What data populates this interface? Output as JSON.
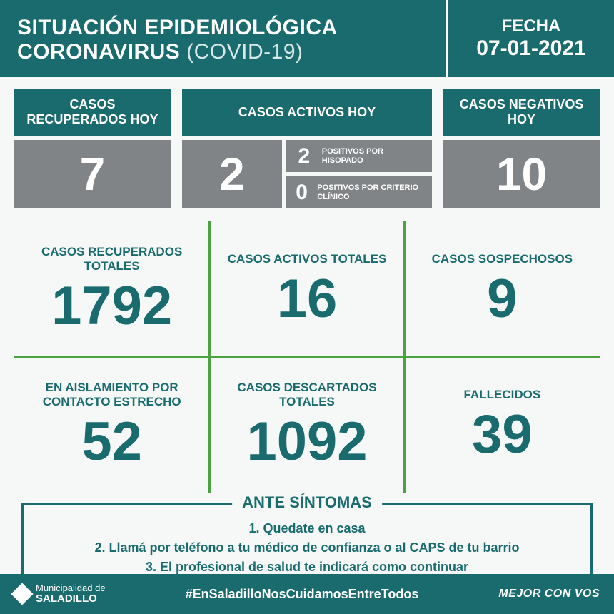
{
  "colors": {
    "teal": "#1a6b6e",
    "gray": "#808487",
    "green_line": "#4aa33f",
    "page_bg": "#f5f8f7",
    "white": "#ffffff"
  },
  "header": {
    "line1": "SITUACIÓN EPIDEMIOLÓGICA",
    "line2_bold": "CORONAVIRUS",
    "line2_thin": "(COVID-19)",
    "fecha_label": "FECHA",
    "fecha_value": "07-01-2021"
  },
  "today": {
    "recovered": {
      "label": "CASOS RECUPERADOS HOY",
      "value": "7"
    },
    "active": {
      "label": "CASOS ACTIVOS HOY",
      "value": "2",
      "breakdown": [
        {
          "value": "2",
          "label": "POSITIVOS POR HISOPADO"
        },
        {
          "value": "0",
          "label": "POSITIVOS POR CRITERIO CLÍNICO"
        }
      ]
    },
    "negative": {
      "label": "CASOS NEGATIVOS HOY",
      "value": "10"
    }
  },
  "totals": {
    "row1": [
      {
        "label": "CASOS RECUPERADOS TOTALES",
        "value": "1792"
      },
      {
        "label": "CASOS ACTIVOS TOTALES",
        "value": "16"
      },
      {
        "label": "CASOS SOSPECHOSOS",
        "value": "9"
      }
    ],
    "row2": [
      {
        "label": "EN AISLAMIENTO POR CONTACTO ESTRECHO",
        "value": "52"
      },
      {
        "label": "CASOS DESCARTADOS TOTALES",
        "value": "1092"
      },
      {
        "label": "FALLECIDOS",
        "value": "39"
      }
    ]
  },
  "symptoms": {
    "title": "ANTE SÍNTOMAS",
    "lines": [
      "1. Quedate en casa",
      "2. Llamá por teléfono a tu médico de confianza o al CAPS de tu barrio",
      "3. El profesional de salud te indicará como continuar"
    ]
  },
  "footer": {
    "logo_line1": "Municipalidad de",
    "logo_line2": "SALADILLO",
    "hashtag": "#EnSaladilloNosCuidamosEntreTodos",
    "slogan": "MEJOR CON VOS"
  }
}
